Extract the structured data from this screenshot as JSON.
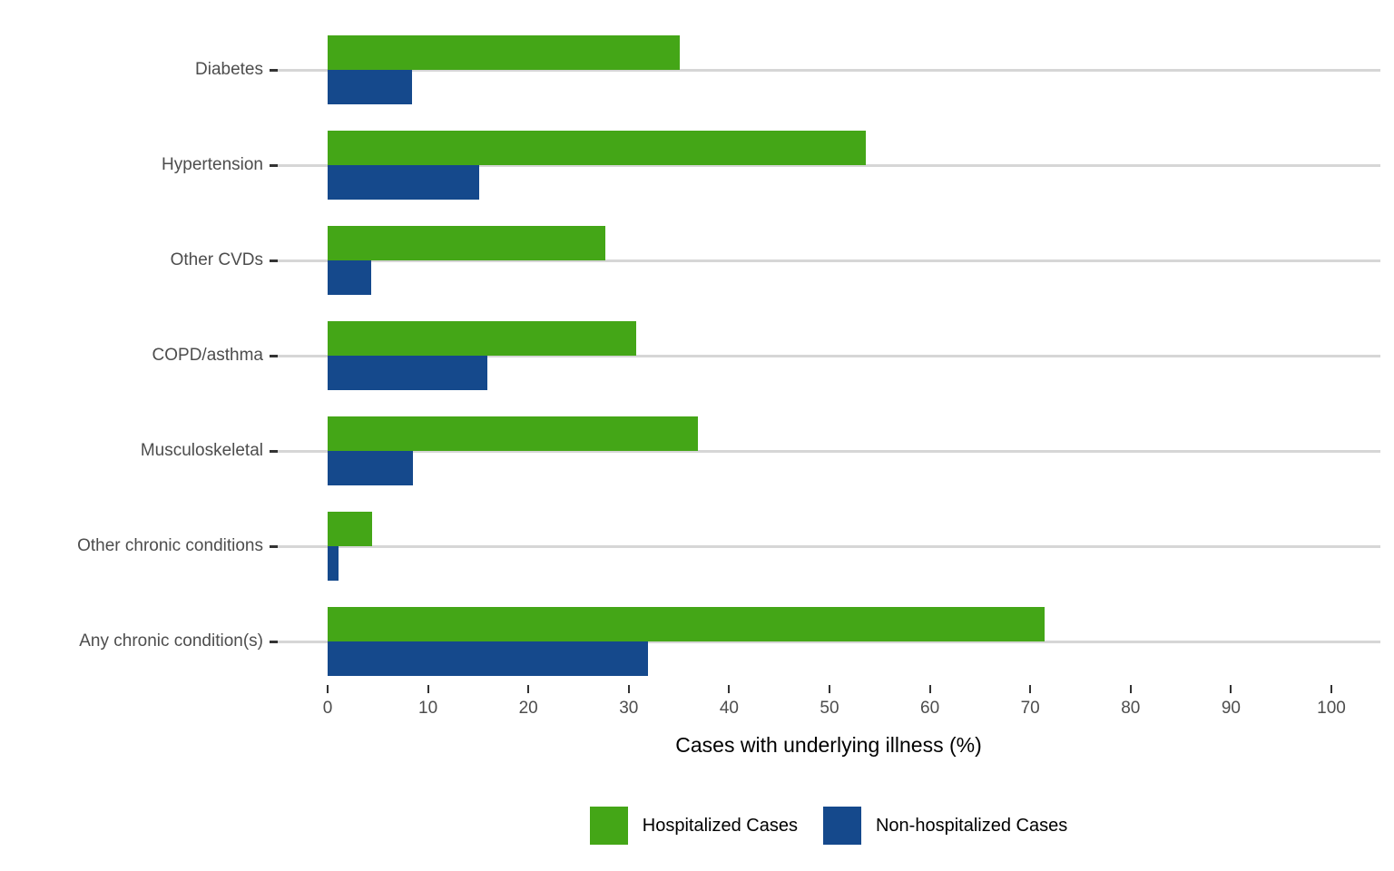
{
  "chart_data": {
    "type": "bar",
    "orientation": "horizontal",
    "title": "",
    "xlabel": "Cases with underlying illness (%)",
    "ylabel": "",
    "xlim": [
      0,
      100
    ],
    "xticks": [
      0,
      10,
      20,
      30,
      40,
      50,
      60,
      70,
      80,
      90,
      100
    ],
    "grid": "horizontal-category-gridlines",
    "legend_position": "bottom-center",
    "categories": [
      "Diabetes",
      "Hypertension",
      "Other CVDs",
      "COPD/asthma",
      "Musculoskeletal",
      "Other chronic conditions",
      "Any chronic condition(s)"
    ],
    "series": [
      {
        "name": "Hospitalized Cases",
        "color": "#44a617",
        "values": [
          35.1,
          53.6,
          27.7,
          30.7,
          36.9,
          4.4,
          71.4
        ]
      },
      {
        "name": "Non-hospitalized Cases",
        "color": "#15498c",
        "values": [
          8.4,
          15.1,
          4.3,
          15.9,
          8.5,
          1.1,
          31.9
        ]
      }
    ],
    "colors": {
      "gridline": "#d6d6d6",
      "tick": "#333333",
      "tick_label": "#4d4d4d",
      "axis_title": "#000000",
      "background": "#ffffff"
    }
  }
}
